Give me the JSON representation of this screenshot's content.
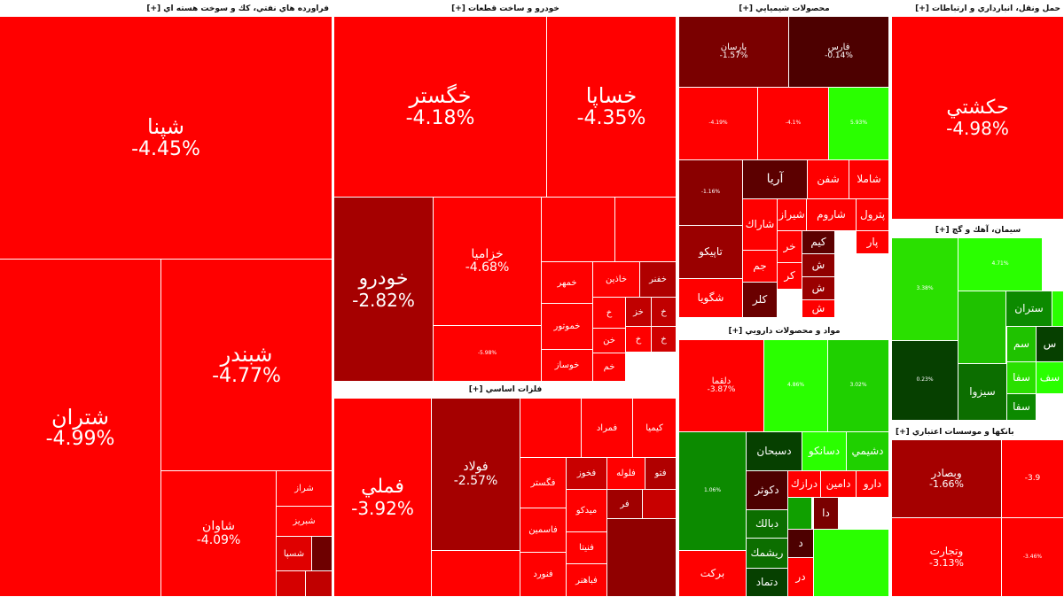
{
  "colors": {
    "red": "#ff0000",
    "dark_red_1": "#cc0000",
    "dark_red_2": "#a50000",
    "dark_red_3": "#7a0000",
    "dark_red_4": "#4d0000",
    "green": "#2aff00",
    "mid_green": "#1fc200",
    "dark_green": "#0c6e00",
    "darkest_green": "#064000"
  },
  "sectors": [
    {
      "name": "فراورده هاي نفتي، كك و سوخت هسته اي [+]",
      "tiles": [
        {
          "symbol": "شپنا",
          "change": "-4.45%",
          "color": "#ff0000"
        },
        {
          "symbol": "شبندر",
          "change": "-4.77%",
          "color": "#ff0000"
        },
        {
          "symbol": "شتران",
          "change": "-4.99%",
          "color": "#ff0000"
        },
        {
          "symbol": "شاوان",
          "change": "-4.09%",
          "color": "#ff0000"
        },
        {
          "symbol": "شراز",
          "color": "#ff0000"
        },
        {
          "symbol": "شبريز",
          "color": "#ff0000"
        },
        {
          "symbol": "شسپا",
          "color": "#e00000"
        },
        {
          "symbol": "",
          "color": "#6e0000"
        },
        {
          "symbol": "",
          "color": "#d50000"
        },
        {
          "symbol": "",
          "color": "#c00000"
        }
      ]
    },
    {
      "name": "خودرو و ساخت قطعات [+]",
      "tiles": [
        {
          "symbol": "خگستر",
          "change": "-4.18%",
          "color": "#ff0000"
        },
        {
          "symbol": "خساپا",
          "change": "-4.35%",
          "color": "#ff0000"
        },
        {
          "symbol": "خودرو",
          "change": "-2.82%",
          "color": "#a50000"
        },
        {
          "symbol": "خزاميا",
          "change": "-4.68%",
          "color": "#ff0000"
        },
        {
          "symbol": "",
          "color": "#ff0000"
        },
        {
          "symbol": "",
          "color": "#ff0000"
        },
        {
          "symbol": "",
          "change": "-5.98%",
          "color": "#ff0000"
        },
        {
          "symbol": "خمهر",
          "color": "#ff0000"
        },
        {
          "symbol": "خاذين",
          "color": "#ff0000"
        },
        {
          "symbol": "خفنر",
          "color": "#b00000"
        },
        {
          "symbol": "خموتور",
          "color": "#ff0000"
        },
        {
          "symbol": "خوساز",
          "color": "#ff0000"
        },
        {
          "symbol": "خ",
          "color": "#ff0000"
        },
        {
          "symbol": "خن",
          "color": "#ff0000"
        },
        {
          "symbol": "خم",
          "color": "#ff0000"
        },
        {
          "symbol": "خز",
          "color": "#c00000"
        },
        {
          "symbol": "خ",
          "color": "#c00000"
        },
        {
          "symbol": "خ",
          "color": "#ff0000"
        },
        {
          "symbol": "خ",
          "color": "#d00000"
        }
      ]
    },
    {
      "name": "فلزات اساسي [+]",
      "tiles": [
        {
          "symbol": "فملي",
          "change": "-3.92%",
          "color": "#ff0000"
        },
        {
          "symbol": "فولاد",
          "change": "-2.57%",
          "color": "#a50000"
        },
        {
          "symbol": "",
          "color": "#ff0000"
        },
        {
          "symbol": "فمراد",
          "color": "#ff0000"
        },
        {
          "symbol": "كيميا",
          "color": "#ff0000"
        },
        {
          "symbol": "فگستر",
          "color": "#ff0000"
        },
        {
          "symbol": "فخوز",
          "color": "#c80000"
        },
        {
          "symbol": "فلوله",
          "color": "#ff0000"
        },
        {
          "symbol": "فتو",
          "color": "#b00000"
        },
        {
          "symbol": "فاسمين",
          "color": "#ff0000"
        },
        {
          "symbol": "ميدكو",
          "color": "#ff0000"
        },
        {
          "symbol": "فر",
          "color": "#a00000"
        },
        {
          "symbol": "فنيتا",
          "color": "#ff0000"
        },
        {
          "symbol": "فنورد",
          "color": "#ff0000"
        },
        {
          "symbol": "فباهنر",
          "color": "#ff0000"
        },
        {
          "symbol": "",
          "color": "#ff0000"
        },
        {
          "symbol": "",
          "color": "#c80000"
        },
        {
          "symbol": "",
          "color": "#900000"
        }
      ]
    },
    {
      "name": "محصولات شيميايي [+]",
      "tiles": [
        {
          "symbol": "پارسان",
          "change": "-1.57%",
          "color": "#7a0000"
        },
        {
          "symbol": "فارس",
          "change": "-0.14%",
          "color": "#4d0000"
        },
        {
          "symbol": "",
          "change": "-4.19%",
          "color": "#ff0000"
        },
        {
          "symbol": "",
          "change": "-4.1%",
          "color": "#ff0000"
        },
        {
          "symbol": "",
          "change": "5.93%",
          "color": "#2aff00"
        },
        {
          "symbol": "",
          "change": "-1.16%",
          "color": "#8a0000"
        },
        {
          "symbol": "آريا",
          "color": "#5c0000"
        },
        {
          "symbol": "شفن",
          "color": "#ff0000"
        },
        {
          "symbol": "شاملا",
          "color": "#ff0000"
        },
        {
          "symbol": "شاراك",
          "color": "#ff0000"
        },
        {
          "symbol": "شيراز",
          "color": "#ff0000"
        },
        {
          "symbol": "شاروم",
          "color": "#ff0000"
        },
        {
          "symbol": "پترول",
          "color": "#ff0000"
        },
        {
          "symbol": "تاپيكو",
          "color": "#9a0000"
        },
        {
          "symbol": "كيم",
          "color": "#5c0000"
        },
        {
          "symbol": "خر",
          "color": "#ff0000"
        },
        {
          "symbol": "پار",
          "color": "#ff0000"
        },
        {
          "symbol": "جم",
          "color": "#ff0000"
        },
        {
          "symbol": "ش",
          "color": "#900000"
        },
        {
          "symbol": "كر",
          "color": "#ff0000"
        },
        {
          "symbol": "شگويا",
          "color": "#ff0000"
        },
        {
          "symbol": "كلر",
          "color": "#6a0000"
        },
        {
          "symbol": "ش",
          "color": "#9a0000"
        },
        {
          "symbol": "ش",
          "color": "#ff0000"
        }
      ]
    },
    {
      "name": "مواد و محصولات دارويي [+]",
      "tiles": [
        {
          "symbol": "دلقما",
          "change": "-3.87%",
          "color": "#ff0000"
        },
        {
          "symbol": "",
          "change": "4.86%",
          "color": "#2aff00"
        },
        {
          "symbol": "",
          "change": "3.02%",
          "color": "#1fd000"
        },
        {
          "symbol": "",
          "change": "1.06%",
          "color": "#0c8a00"
        },
        {
          "symbol": "دسبحان",
          "color": "#064000"
        },
        {
          "symbol": "دسانكو",
          "color": "#2aff00"
        },
        {
          "symbol": "دشيمي",
          "color": "#1fd000"
        },
        {
          "symbol": "دكوثر",
          "color": "#4d0000"
        },
        {
          "symbol": "درازك",
          "color": "#ff0000"
        },
        {
          "symbol": "دامين",
          "color": "#ff0000"
        },
        {
          "symbol": "دارو",
          "color": "#ff0000"
        },
        {
          "symbol": "",
          "color": "#10a000"
        },
        {
          "symbol": "دبالك",
          "color": "#0c6e00"
        },
        {
          "symbol": "ريشمك",
          "color": "#0c6e00"
        },
        {
          "symbol": "دتماد",
          "color": "#064000"
        },
        {
          "symbol": "بركت",
          "color": "#ff0000"
        },
        {
          "symbol": "د",
          "color": "#4d0000"
        },
        {
          "symbol": "دا",
          "color": "#7a0000"
        },
        {
          "symbol": "در",
          "color": "#ff0000"
        },
        {
          "symbol": "",
          "color": "#2aff00"
        }
      ]
    },
    {
      "name": "حمل ونقل، انبارداري و ارتباطات [+]",
      "tiles": [
        {
          "symbol": "حكشتي",
          "change": "-4.98%",
          "color": "#ff0000"
        }
      ]
    },
    {
      "name": "سيمان، آهك و گچ [+]",
      "tiles": [
        {
          "symbol": "",
          "change": "3.38%",
          "color": "#2ae000"
        },
        {
          "symbol": "",
          "change": "4.71%",
          "color": "#2aff00"
        },
        {
          "symbol": "ستران",
          "color": "#0c8a00"
        },
        {
          "symbol": "",
          "color": "#2aff00"
        },
        {
          "symbol": "",
          "change": "0.23%",
          "color": "#064000"
        },
        {
          "symbol": "سيزوا",
          "color": "#0c6e00"
        },
        {
          "symbol": "سم",
          "color": "#1fc200"
        },
        {
          "symbol": "سفا",
          "color": "#2ae000"
        },
        {
          "symbol": "سفا",
          "color": "#0c8a00"
        },
        {
          "symbol": "س",
          "color": "#064000"
        },
        {
          "symbol": "سف",
          "color": "#2aff00"
        },
        {
          "symbol": "",
          "color": "#1fc200"
        }
      ]
    },
    {
      "name": "بانكها و موسسات اعتباري [+]",
      "tiles": [
        {
          "symbol": "وبصادر",
          "change": "-1.66%",
          "color": "#a50000"
        },
        {
          "symbol": "",
          "change": "-3.9",
          "color": "#ff0000"
        },
        {
          "symbol": "وتجارت",
          "change": "-3.13%",
          "color": "#ff0000"
        },
        {
          "symbol": "",
          "change": "-3.46%",
          "color": "#ff0000"
        }
      ]
    }
  ]
}
